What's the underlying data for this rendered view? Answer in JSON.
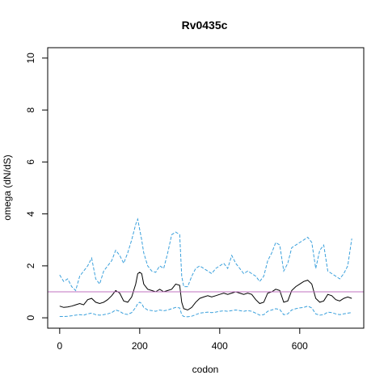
{
  "chart_data": {
    "type": "line",
    "title": "Rv0435c",
    "xlabel": "codon",
    "ylabel": "omega (dN/dS)",
    "xlim": [
      -30,
      760
    ],
    "ylim": [
      -0.4,
      10.4
    ],
    "xticks": [
      0,
      200,
      400,
      600
    ],
    "yticks": [
      0,
      2,
      4,
      6,
      8,
      10
    ],
    "grid": false,
    "reference_line": {
      "y": 1,
      "color": "#c070c0"
    },
    "series": [
      {
        "role": "estimate",
        "color": "#000000",
        "dash": "solid",
        "x": [
          0,
          10,
          20,
          30,
          40,
          50,
          60,
          70,
          80,
          90,
          100,
          110,
          120,
          130,
          140,
          150,
          160,
          170,
          180,
          190,
          195,
          200,
          205,
          210,
          220,
          230,
          240,
          250,
          260,
          270,
          280,
          290,
          300,
          305,
          310,
          320,
          330,
          340,
          350,
          360,
          370,
          380,
          390,
          400,
          410,
          420,
          430,
          440,
          450,
          460,
          470,
          480,
          490,
          500,
          510,
          520,
          530,
          540,
          550,
          560,
          570,
          580,
          590,
          600,
          610,
          620,
          630,
          640,
          650,
          660,
          670,
          680,
          690,
          700,
          710,
          720,
          730
        ],
        "y": [
          0.45,
          0.4,
          0.42,
          0.45,
          0.5,
          0.55,
          0.5,
          0.7,
          0.75,
          0.6,
          0.55,
          0.6,
          0.7,
          0.85,
          1.05,
          0.95,
          0.65,
          0.6,
          0.8,
          1.3,
          1.7,
          1.75,
          1.7,
          1.3,
          1.1,
          1.05,
          1.0,
          1.1,
          1.0,
          1.05,
          1.1,
          1.3,
          1.25,
          0.6,
          0.35,
          0.3,
          0.4,
          0.6,
          0.75,
          0.8,
          0.85,
          0.8,
          0.85,
          0.9,
          0.95,
          0.9,
          0.95,
          1.0,
          0.95,
          0.9,
          0.95,
          0.9,
          0.7,
          0.55,
          0.6,
          0.95,
          1.0,
          1.1,
          1.05,
          0.6,
          0.65,
          1.05,
          1.2,
          1.3,
          1.4,
          1.45,
          1.3,
          0.75,
          0.6,
          0.65,
          0.9,
          0.85,
          0.7,
          0.65,
          0.75,
          0.8,
          0.75
        ]
      },
      {
        "role": "upper",
        "color": "#3aa0dc",
        "dash": "dashed",
        "x": [
          0,
          10,
          20,
          30,
          40,
          50,
          60,
          70,
          80,
          90,
          100,
          110,
          120,
          130,
          140,
          150,
          160,
          170,
          180,
          190,
          195,
          200,
          205,
          210,
          220,
          230,
          240,
          250,
          260,
          270,
          280,
          290,
          300,
          305,
          310,
          320,
          330,
          340,
          350,
          360,
          370,
          380,
          390,
          400,
          410,
          420,
          430,
          440,
          450,
          460,
          470,
          480,
          490,
          500,
          510,
          520,
          530,
          540,
          550,
          560,
          570,
          580,
          590,
          600,
          610,
          620,
          630,
          640,
          650,
          660,
          670,
          680,
          690,
          700,
          710,
          720,
          730
        ],
        "y": [
          1.65,
          1.4,
          1.5,
          1.2,
          1.05,
          1.6,
          1.8,
          2.0,
          2.3,
          1.5,
          1.3,
          1.8,
          2.0,
          2.2,
          2.6,
          2.4,
          2.1,
          2.5,
          3.0,
          3.6,
          3.8,
          3.4,
          3.0,
          2.5,
          2.0,
          1.8,
          1.75,
          2.0,
          1.9,
          2.5,
          3.2,
          3.3,
          3.2,
          1.6,
          1.2,
          1.2,
          1.6,
          1.9,
          2.0,
          1.9,
          1.8,
          1.7,
          1.9,
          2.0,
          2.1,
          1.9,
          2.4,
          2.1,
          1.9,
          1.7,
          1.8,
          1.7,
          1.6,
          1.4,
          1.6,
          2.2,
          2.5,
          2.9,
          2.8,
          1.8,
          2.1,
          2.7,
          2.8,
          2.9,
          3.0,
          3.1,
          2.9,
          1.9,
          2.6,
          2.8,
          1.8,
          1.7,
          1.6,
          1.5,
          1.7,
          2.0,
          3.05
        ]
      },
      {
        "role": "lower",
        "color": "#3aa0dc",
        "dash": "dashed",
        "x": [
          0,
          10,
          20,
          30,
          40,
          50,
          60,
          70,
          80,
          90,
          100,
          110,
          120,
          130,
          140,
          150,
          160,
          170,
          180,
          190,
          195,
          200,
          205,
          210,
          220,
          230,
          240,
          250,
          260,
          270,
          280,
          290,
          300,
          305,
          310,
          320,
          330,
          340,
          350,
          360,
          370,
          380,
          390,
          400,
          410,
          420,
          430,
          440,
          450,
          460,
          470,
          480,
          490,
          500,
          510,
          520,
          530,
          540,
          550,
          560,
          570,
          580,
          590,
          600,
          610,
          620,
          630,
          640,
          650,
          660,
          670,
          680,
          690,
          700,
          710,
          720,
          730
        ],
        "y": [
          0.05,
          0.05,
          0.06,
          0.08,
          0.1,
          0.12,
          0.1,
          0.15,
          0.18,
          0.12,
          0.1,
          0.12,
          0.15,
          0.2,
          0.3,
          0.25,
          0.15,
          0.13,
          0.2,
          0.4,
          0.55,
          0.6,
          0.55,
          0.4,
          0.3,
          0.28,
          0.25,
          0.3,
          0.27,
          0.3,
          0.35,
          0.4,
          0.38,
          0.12,
          0.05,
          0.04,
          0.06,
          0.12,
          0.18,
          0.2,
          0.22,
          0.2,
          0.22,
          0.25,
          0.27,
          0.25,
          0.28,
          0.3,
          0.28,
          0.25,
          0.28,
          0.25,
          0.18,
          0.1,
          0.12,
          0.25,
          0.3,
          0.35,
          0.32,
          0.12,
          0.15,
          0.3,
          0.35,
          0.38,
          0.4,
          0.45,
          0.38,
          0.15,
          0.1,
          0.12,
          0.22,
          0.2,
          0.15,
          0.12,
          0.15,
          0.18,
          0.2
        ]
      }
    ]
  }
}
